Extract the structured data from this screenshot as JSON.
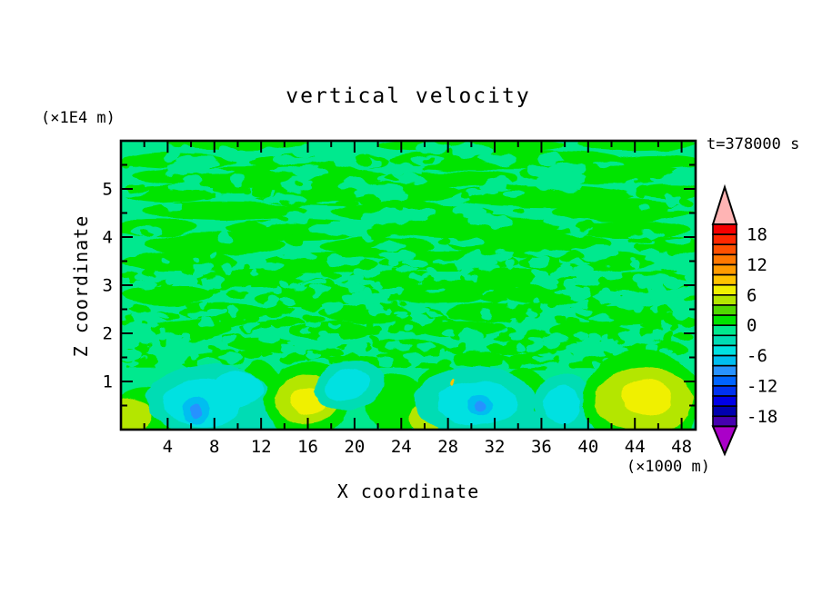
{
  "title": "vertical velocity",
  "time_label": "t=378000 s",
  "y_unit_label": "(×1E4 m)",
  "x_unit_label": "(×1000 m)",
  "xlabel": "X coordinate",
  "ylabel": "Z coordinate",
  "chart_data": {
    "type": "filled_contour",
    "title": "vertical velocity",
    "time": "t=378000 s",
    "xlabel": "X coordinate",
    "x_unit": "×1000 m",
    "ylabel": "Z coordinate",
    "y_unit": "×1E4 m",
    "x_range": [
      0,
      49.2
    ],
    "y_range": [
      0,
      6
    ],
    "x_major_ticks": [
      4,
      8,
      12,
      16,
      20,
      24,
      28,
      32,
      36,
      40,
      44,
      48
    ],
    "x_minor_ticks": [
      2,
      6,
      10,
      14,
      18,
      22,
      26,
      30,
      34,
      38,
      42,
      46
    ],
    "y_major_ticks": [
      1,
      2,
      3,
      4,
      5
    ],
    "y_minor_ticks": [
      0.5,
      1.5,
      2.5,
      3.5,
      4.5,
      5.5
    ],
    "grid": false,
    "colorbar": {
      "position": "right",
      "contour_interval": 2,
      "boundaries": [
        20,
        18,
        16,
        14,
        12,
        10,
        8,
        6,
        4,
        2,
        0,
        -2,
        -4,
        -6,
        -8,
        -10,
        -12,
        -14,
        -16,
        -18,
        -20
      ],
      "segments_top_to_bottom": [
        "#f50000",
        "#ff2800",
        "#ff5000",
        "#ff7800",
        "#ff9b00",
        "#ffc300",
        "#f0f000",
        "#b4e600",
        "#50d800",
        "#00e400",
        "#00e98e",
        "#00dcb4",
        "#00e1e1",
        "#00bef0",
        "#2892ff",
        "#0064ff",
        "#0032f0",
        "#0000e6",
        "#0000af",
        "#4600af"
      ],
      "over_arrow_color": "#ffb4b4",
      "under_arrow_color": "#aa00c8",
      "tick_values": [
        18,
        12,
        6,
        0,
        -6,
        -12,
        -18
      ],
      "tick_labels": [
        "18",
        "12",
        "6",
        "0",
        "-6",
        "-12",
        "-18"
      ]
    },
    "field": {
      "description": "Mostly near-zero vertical velocity: alternating 0..2 (green) and -2..0 (spring green) streaks aloft, turbulent mixed band near z=1.1-3.4, and convective features below z=1.3 (cyan/blue downdraft cores, yellow updraft cores).",
      "levels": {
        "yellow": "#f0f000",
        "chartreuse": "#b4e600",
        "greenyellow": "#50d800",
        "green": "#00e400",
        "spring": "#00e98e",
        "teal": "#00dcb4",
        "cyan": "#00e1e1",
        "lightblue": "#00bef0",
        "sky": "#2892ff",
        "amber": "#ffc300"
      },
      "background_level": "spring",
      "green_streaks": [
        [
          10,
          5.95,
          6,
          0.12
        ],
        [
          30,
          5.9,
          8,
          0.15
        ],
        [
          44,
          5.92,
          5,
          0.12
        ],
        [
          5,
          5.6,
          5,
          0.18
        ],
        [
          17,
          5.55,
          6,
          0.2
        ],
        [
          33,
          5.6,
          10,
          0.22
        ],
        [
          46,
          5.55,
          4,
          0.15
        ],
        [
          12,
          5.25,
          11,
          0.22
        ],
        [
          28,
          5.2,
          6,
          0.18
        ],
        [
          41,
          5.3,
          7,
          0.2
        ],
        [
          4,
          4.9,
          4,
          0.18
        ],
        [
          20,
          4.9,
          9,
          0.25
        ],
        [
          36,
          4.85,
          8,
          0.22
        ],
        [
          47,
          4.95,
          3,
          0.15
        ],
        [
          9,
          4.55,
          7,
          0.2
        ],
        [
          25,
          4.5,
          7,
          0.2
        ],
        [
          43,
          4.55,
          6,
          0.22
        ],
        [
          3,
          4.2,
          3.5,
          0.18
        ],
        [
          15,
          4.15,
          6,
          0.22
        ],
        [
          30,
          4.2,
          8,
          0.25
        ],
        [
          44,
          4.15,
          5,
          0.2
        ],
        [
          8,
          3.85,
          6,
          0.22
        ],
        [
          22,
          3.8,
          5,
          0.2
        ],
        [
          35,
          3.85,
          7,
          0.25
        ],
        [
          47,
          3.8,
          3,
          0.18
        ],
        [
          5,
          3.5,
          5,
          0.2
        ],
        [
          17,
          3.45,
          5,
          0.22
        ],
        [
          28,
          3.5,
          6,
          0.22
        ],
        [
          40,
          3.5,
          6,
          0.22
        ],
        [
          11,
          3.15,
          5,
          0.2
        ],
        [
          24,
          3.1,
          4,
          0.2
        ],
        [
          34,
          3.15,
          5,
          0.22
        ],
        [
          45,
          3.1,
          4,
          0.2
        ],
        [
          4,
          2.8,
          4,
          0.2
        ],
        [
          16,
          2.75,
          4.5,
          0.2
        ],
        [
          27,
          2.8,
          4,
          0.2
        ],
        [
          38,
          2.8,
          5,
          0.22
        ],
        [
          9,
          2.45,
          4,
          0.18
        ],
        [
          21,
          2.4,
          4,
          0.2
        ],
        [
          32,
          2.45,
          4,
          0.2
        ],
        [
          43,
          2.4,
          4,
          0.2
        ],
        [
          6,
          2.1,
          3.5,
          0.18
        ],
        [
          18,
          2.05,
          3.5,
          0.18
        ],
        [
          29,
          2.1,
          3.5,
          0.18
        ],
        [
          40,
          2.05,
          3.5,
          0.18
        ],
        [
          12,
          1.75,
          3,
          0.16
        ],
        [
          25,
          1.7,
          3,
          0.16
        ],
        [
          36,
          1.75,
          3,
          0.16
        ],
        [
          46,
          1.7,
          2.5,
          0.16
        ],
        [
          8,
          1.45,
          2.5,
          0.14
        ],
        [
          20,
          1.4,
          2.5,
          0.14
        ],
        [
          31,
          1.45,
          2.5,
          0.14
        ],
        [
          42,
          1.4,
          2.5,
          0.14
        ]
      ],
      "bottom_band": {
        "level": "spring",
        "z_top": 1.27
      },
      "speckle": {
        "seed": 20240917,
        "groups": [
          {
            "level": "green",
            "count": 300,
            "x": [
              0.3,
              48.9
            ],
            "z": [
              1.05,
              3.4
            ],
            "rx": [
              0.22,
              1.25
            ],
            "rz": [
              0.05,
              0.13
            ]
          },
          {
            "level": "spring",
            "count": 230,
            "x": [
              0.3,
              48.9
            ],
            "z": [
              1.3,
              3.65
            ],
            "rx": [
              0.22,
              1.15
            ],
            "rz": [
              0.05,
              0.12
            ]
          },
          {
            "level": "spring",
            "count": 90,
            "x": [
              0.5,
              48.7
            ],
            "z": [
              3.5,
              5.9
            ],
            "rx": [
              0.5,
              2.2
            ],
            "rz": [
              0.06,
              0.16
            ]
          },
          {
            "level": "green",
            "count": 60,
            "x": [
              0.5,
              48.7
            ],
            "z": [
              3.4,
              5.7
            ],
            "rx": [
              0.3,
              1.2
            ],
            "rz": [
              0.05,
              0.12
            ]
          }
        ]
      },
      "features": [
        {
          "level": "green",
          "cx": 2.2,
          "cz": 0.35,
          "rx": 2.8,
          "rz": 0.55
        },
        {
          "level": "chartreuse",
          "cx": 0.7,
          "cz": 0.28,
          "rx": 1.9,
          "rz": 0.4
        },
        {
          "level": "green",
          "cx": 11.9,
          "cz": 0.8,
          "rx": 1.8,
          "rz": 0.65
        },
        {
          "level": "green",
          "cx": 23.6,
          "cz": 0.55,
          "rx": 2.6,
          "rz": 0.6
        },
        {
          "level": "green",
          "cx": 27.3,
          "cz": 0.85,
          "rx": 2.0,
          "rz": 0.5
        },
        {
          "level": "green",
          "cx": 34.6,
          "cz": 0.8,
          "rx": 1.9,
          "rz": 0.5
        },
        {
          "level": "green",
          "cx": 40.7,
          "cz": 0.45,
          "rx": 1.6,
          "rz": 0.5
        },
        {
          "level": "teal",
          "cx": 7.6,
          "cz": 0.6,
          "rx": 5.4,
          "rz": 0.75
        },
        {
          "level": "teal",
          "cx": 34.5,
          "cz": 0.12,
          "rx": 8.0,
          "rz": 0.3
        },
        {
          "level": "teal",
          "cx": 14.2,
          "cz": 0.18,
          "rx": 4.0,
          "rz": 0.3
        },
        {
          "level": "cyan",
          "cx": 7.0,
          "cz": 0.55,
          "rx": 3.4,
          "rz": 0.5
        },
        {
          "level": "cyan",
          "cx": 10.1,
          "cz": 0.85,
          "rx": 2.0,
          "rz": 0.35
        },
        {
          "level": "lightblue",
          "cx": 6.4,
          "cz": 0.4,
          "rx": 1.15,
          "rz": 0.3
        },
        {
          "level": "sky",
          "cx": 6.4,
          "cz": 0.37,
          "rx": 0.5,
          "rz": 0.15
        },
        {
          "level": "green",
          "cx": 15.9,
          "cz": 0.62,
          "rx": 3.7,
          "rz": 0.78
        },
        {
          "level": "chartreuse",
          "cx": 15.9,
          "cz": 0.6,
          "rx": 2.8,
          "rz": 0.52
        },
        {
          "level": "yellow",
          "cx": 16.1,
          "cz": 0.6,
          "rx": 1.65,
          "rz": 0.3
        },
        {
          "level": "teal",
          "cx": 19.6,
          "cz": 0.92,
          "rx": 3.0,
          "rz": 0.5,
          "rot": -12
        },
        {
          "level": "cyan",
          "cx": 19.4,
          "cz": 0.92,
          "rx": 1.9,
          "rz": 0.3,
          "rot": -12
        },
        {
          "level": "chartreuse",
          "cx": 25.9,
          "cz": 0.22,
          "rx": 1.3,
          "rz": 0.33
        },
        {
          "level": "teal",
          "cx": 30.3,
          "cz": 0.6,
          "rx": 5.2,
          "rz": 0.72
        },
        {
          "level": "cyan",
          "cx": 30.5,
          "cz": 0.55,
          "rx": 3.5,
          "rz": 0.46
        },
        {
          "level": "lightblue",
          "cx": 30.7,
          "cz": 0.5,
          "rx": 1.05,
          "rz": 0.22
        },
        {
          "level": "sky",
          "cx": 30.7,
          "cz": 0.5,
          "rx": 0.48,
          "rz": 0.13
        },
        {
          "level": "teal",
          "cx": 37.9,
          "cz": 0.55,
          "rx": 2.5,
          "rz": 0.62
        },
        {
          "level": "cyan",
          "cx": 37.8,
          "cz": 0.5,
          "rx": 1.55,
          "rz": 0.4
        },
        {
          "level": "green",
          "cx": 44.6,
          "cz": 0.62,
          "rx": 5.0,
          "rz": 1.05
        },
        {
          "level": "chartreuse",
          "cx": 44.8,
          "cz": 0.6,
          "rx": 4.2,
          "rz": 0.68
        },
        {
          "level": "yellow",
          "cx": 45.0,
          "cz": 0.68,
          "rx": 2.2,
          "rz": 0.38
        },
        {
          "level": "amber",
          "cx": 28.4,
          "cz": 0.98,
          "rx": 0.14,
          "rz": 0.07
        }
      ]
    }
  }
}
